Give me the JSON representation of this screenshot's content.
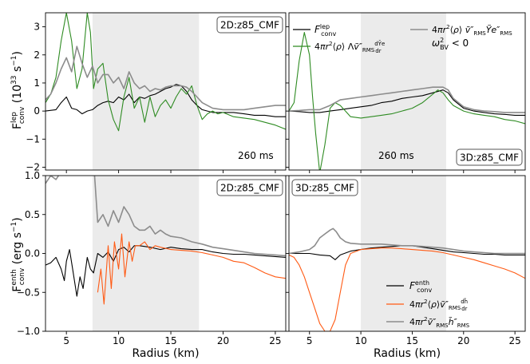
{
  "figure": {
    "top_ylabel": "F_conv^lep (10^33 s^-1)",
    "bottom_ylabel": "F_conv^enth (erg s^-1)",
    "xlabel": "Radius (km)"
  },
  "colors": {
    "black": "#000000",
    "gray": "#8c8c8c",
    "green": "#2e8b22",
    "orange": "#ff5a14",
    "shade": "#ebebeb"
  },
  "legend_top": [
    {
      "label": "F_conv^lep",
      "color": "#000000"
    },
    {
      "label": "4πr²⟨ρ⟩ Λṽ″_RMS dȲe/dr",
      "color": "#2e8b22"
    },
    {
      "label": "4πr²⟨ρ⟩ ṽ″_RMS Ỹe″_RMS",
      "color": "#8c8c8c"
    },
    {
      "label": "ω²_BV < 0",
      "color": "#ebebeb"
    }
  ],
  "legend_bottom": [
    {
      "label": "F_conv^enth",
      "color": "#000000"
    },
    {
      "label": "4πr²⟨ρ⟩ṽ″_RMS dh̃/dr",
      "color": "#ff5a14"
    },
    {
      "label": "4πr²ṽ″_RMS h̃″_RMS",
      "color": "#8c8c8c"
    }
  ],
  "chart_data": [
    {
      "type": "line",
      "panel": "2D:z85_CMF",
      "title": "2D:z85_CMF",
      "annotation": "260 ms",
      "xlabel": "",
      "ylabel": "F_conv^lep (10^33 s^-1)",
      "xlim": [
        3,
        26
      ],
      "ylim": [
        -2.1,
        3.5
      ],
      "xticks": [
        5,
        10,
        15,
        20,
        25
      ],
      "yticks": [
        -2,
        -1,
        0,
        1,
        2,
        3
      ],
      "shaded_region": [
        7.5,
        17.7
      ],
      "series": [
        {
          "name": "F_conv^lep",
          "color": "#000000",
          "x": [
            3,
            4,
            4.5,
            5,
            5.5,
            6,
            6.5,
            7,
            7.5,
            8,
            8.5,
            9,
            9.5,
            10,
            10.5,
            11,
            11.5,
            12,
            12.5,
            13,
            13.5,
            14,
            14.5,
            15,
            15.5,
            16,
            16.5,
            17,
            17.5,
            18,
            18.5,
            19,
            20,
            21,
            22,
            23,
            24,
            25,
            26
          ],
          "y": [
            0,
            0.05,
            0.3,
            0.5,
            0.1,
            0.05,
            -0.1,
            0,
            0.05,
            0.2,
            0.3,
            0.35,
            0.3,
            0.5,
            0.4,
            0.6,
            0.3,
            0.5,
            0.45,
            0.55,
            0.6,
            0.7,
            0.8,
            0.85,
            0.95,
            0.9,
            0.7,
            0.4,
            0.2,
            0.05,
            0,
            -0.05,
            -0.05,
            -0.05,
            -0.1,
            -0.15,
            -0.15,
            -0.2,
            -0.2
          ]
        },
        {
          "name": "4πr²⟨ρ⟩ Λṽ″_RMS dȲe/dr",
          "color": "#2e8b22",
          "x": [
            3,
            3.5,
            4,
            4.5,
            5,
            5.5,
            6,
            6.5,
            7,
            7.3,
            7.6,
            8,
            8.5,
            9,
            9.5,
            10,
            10.5,
            11,
            11.5,
            12,
            12.5,
            13,
            13.5,
            14,
            14.5,
            15,
            15.5,
            16,
            16.5,
            17,
            17.5,
            18,
            18.5,
            19,
            19.5,
            20,
            21,
            22,
            23,
            24,
            25,
            26
          ],
          "y": [
            0.3,
            0.6,
            1.2,
            2.5,
            3.5,
            2.5,
            0.8,
            1.5,
            3.5,
            2.8,
            0.8,
            1.5,
            1.7,
            0.4,
            -0.3,
            -0.7,
            0.5,
            1.2,
            0.1,
            0.5,
            -0.4,
            0.5,
            -0.2,
            0.2,
            0.4,
            0.1,
            0.5,
            0.8,
            0.6,
            0.9,
            0.2,
            -0.3,
            -0.1,
            0.0,
            -0.1,
            -0.05,
            -0.2,
            -0.25,
            -0.3,
            -0.4,
            -0.5,
            -0.65
          ]
        },
        {
          "name": "4πr²⟨ρ⟩ ṽ″_RMS Ỹe″_RMS",
          "color": "#8c8c8c",
          "x": [
            3,
            3.5,
            4,
            4.5,
            5,
            5.5,
            6,
            6.5,
            7,
            7.5,
            8,
            8.5,
            9,
            9.5,
            10,
            10.5,
            11,
            11.5,
            12,
            12.5,
            13,
            13.5,
            14,
            14.5,
            15,
            15.5,
            16,
            16.5,
            17,
            17.5,
            18,
            18.5,
            19,
            20,
            21,
            22,
            23,
            24,
            25,
            26
          ],
          "y": [
            0.4,
            0.6,
            1.0,
            1.5,
            1.9,
            1.4,
            2.3,
            1.7,
            1.2,
            1.6,
            1.0,
            1.3,
            1.3,
            1.0,
            1.2,
            0.8,
            1.4,
            1.0,
            0.8,
            0.9,
            0.7,
            0.8,
            0.75,
            0.85,
            0.9,
            0.9,
            0.9,
            0.85,
            0.7,
            0.5,
            0.3,
            0.2,
            0.1,
            0.05,
            0.05,
            0.05,
            0.1,
            0.15,
            0.2,
            0.2
          ]
        }
      ]
    },
    {
      "type": "line",
      "panel": "3D:z85_CMF (lepton)",
      "title": "3D:z85_CMF",
      "annotation": "260 ms",
      "xlabel": "",
      "ylabel": "",
      "xlim": [
        3,
        26
      ],
      "ylim": [
        -2.1,
        3.5
      ],
      "xticks": [
        5,
        10,
        15,
        20,
        25
      ],
      "yticks": [
        -2,
        -1,
        0,
        1,
        2,
        3
      ],
      "shaded_region": [
        10,
        18.3
      ],
      "series": [
        {
          "name": "F_conv^lep",
          "color": "#000000",
          "x": [
            3,
            4,
            5,
            6,
            7,
            8,
            9,
            10,
            11,
            12,
            13,
            14,
            15,
            16,
            17,
            18,
            18.5,
            19,
            20,
            21,
            22,
            23,
            24,
            25,
            26
          ],
          "y": [
            0,
            -0.02,
            -0.05,
            -0.05,
            0,
            0.05,
            0.1,
            0.15,
            0.2,
            0.3,
            0.35,
            0.45,
            0.5,
            0.55,
            0.65,
            0.75,
            0.65,
            0.4,
            0.1,
            0,
            -0.05,
            -0.1,
            -0.12,
            -0.15,
            -0.15
          ]
        },
        {
          "name": "4πr²⟨ρ⟩ Λṽ″_RMS dȲe/dr",
          "color": "#2e8b22",
          "x": [
            3,
            3.5,
            4,
            4.5,
            5,
            5.3,
            5.6,
            6,
            6.5,
            7,
            7.5,
            8,
            8.5,
            9,
            10,
            11,
            12,
            13,
            14,
            15,
            16,
            17,
            17.5,
            18,
            18.5,
            19,
            20,
            21,
            22,
            23,
            24,
            25,
            26
          ],
          "y": [
            0,
            0.3,
            1.8,
            2.8,
            2.0,
            0.5,
            -0.8,
            -2.2,
            -1.2,
            0.1,
            0.3,
            0.2,
            0,
            -0.2,
            -0.25,
            -0.2,
            -0.15,
            -0.1,
            0,
            0.1,
            0.3,
            0.6,
            0.75,
            0.65,
            0.4,
            0.2,
            0,
            -0.1,
            -0.15,
            -0.2,
            -0.3,
            -0.35,
            -0.45
          ]
        },
        {
          "name": "4πr²⟨ρ⟩ ṽ″_RMS Ỹe″_RMS",
          "color": "#8c8c8c",
          "x": [
            3,
            4,
            5,
            6,
            7,
            8,
            9,
            10,
            11,
            12,
            13,
            14,
            15,
            16,
            17,
            18,
            18.5,
            19,
            20,
            21,
            22,
            23,
            24,
            25,
            26
          ],
          "y": [
            0,
            0.02,
            0.05,
            0.05,
            0.2,
            0.4,
            0.45,
            0.5,
            0.55,
            0.6,
            0.65,
            0.7,
            0.75,
            0.8,
            0.85,
            0.85,
            0.75,
            0.45,
            0.15,
            0.05,
            0,
            -0.02,
            -0.05,
            -0.05,
            -0.05
          ]
        }
      ]
    },
    {
      "type": "line",
      "panel": "2D:z85_CMF (enthalpy)",
      "title": "2D:z85_CMF",
      "xlabel": "Radius (km)",
      "ylabel": "F_conv^enth (erg s^-1)",
      "xlim": [
        3,
        26
      ],
      "ylim": [
        -1.0,
        1.0
      ],
      "xticks": [
        5,
        10,
        15,
        20,
        25
      ],
      "yticks": [
        -1.0,
        -0.5,
        0.0,
        0.5,
        1.0
      ],
      "shaded_region": [
        7.5,
        17.7
      ],
      "series": [
        {
          "name": "F_conv^enth",
          "color": "#000000",
          "x": [
            3,
            3.5,
            4,
            4.5,
            4.8,
            5,
            5.3,
            5.6,
            6,
            6.3,
            6.6,
            7,
            7.3,
            7.6,
            8,
            8.5,
            9,
            9.5,
            10,
            10.5,
            11,
            11.5,
            12,
            13,
            14,
            15,
            16,
            17,
            18,
            19,
            20,
            21,
            22,
            23,
            24,
            25,
            26
          ],
          "y": [
            -0.15,
            -0.12,
            -0.05,
            -0.2,
            -0.35,
            -0.1,
            0.05,
            -0.2,
            -0.55,
            -0.3,
            -0.45,
            -0.05,
            -0.2,
            -0.25,
            0,
            -0.05,
            0.02,
            -0.1,
            0.05,
            0.08,
            0.02,
            0.1,
            0.1,
            0.08,
            0.05,
            0.08,
            0.06,
            0.05,
            0.05,
            0.02,
            0,
            -0.01,
            -0.01,
            -0.02,
            -0.03,
            -0.04,
            -0.05
          ]
        },
        {
          "name": "4πr²⟨ρ⟩ṽ″_RMS dh̃/dr",
          "color": "#ff5a14",
          "x": [
            8,
            8.3,
            8.6,
            9,
            9.3,
            9.6,
            10,
            10.3,
            10.6,
            11,
            11.3,
            11.6,
            12,
            12.5,
            13,
            13.5,
            14,
            15,
            16,
            17,
            18,
            19,
            20,
            21,
            22,
            23,
            24,
            25,
            26
          ],
          "y": [
            -0.5,
            -0.2,
            -0.65,
            0.1,
            -0.45,
            0.15,
            -0.2,
            0.25,
            -0.3,
            0.15,
            -0.1,
            0.1,
            0.1,
            0.15,
            0.05,
            0.1,
            0.08,
            0.05,
            0.04,
            0.03,
            0.01,
            -0.02,
            -0.05,
            -0.1,
            -0.12,
            -0.18,
            -0.25,
            -0.3,
            -0.32
          ]
        },
        {
          "name": "4πr²ṽ″_RMS h̃″_RMS",
          "color": "#8c8c8c",
          "x": [
            3,
            3.5,
            4,
            4.5,
            5,
            5.5,
            7.6,
            8,
            8.5,
            9,
            9.5,
            10,
            10.5,
            11,
            11.5,
            12,
            12.5,
            13,
            13.5,
            14,
            14.5,
            15,
            16,
            17,
            18,
            19,
            20,
            21,
            22,
            23,
            24,
            25,
            26
          ],
          "y": [
            0.9,
            1.0,
            0.95,
            1.05,
            1.1,
            1.2,
            1.2,
            0.4,
            0.5,
            0.35,
            0.55,
            0.4,
            0.6,
            0.5,
            0.35,
            0.3,
            0.3,
            0.35,
            0.25,
            0.3,
            0.25,
            0.22,
            0.2,
            0.15,
            0.12,
            0.08,
            0.06,
            0.04,
            0.02,
            0,
            -0.01,
            -0.02,
            -0.03
          ]
        }
      ]
    },
    {
      "type": "line",
      "panel": "3D:z85_CMF (enthalpy)",
      "title": "3D:z85_CMF",
      "xlabel": "Radius (km)",
      "ylabel": "",
      "xlim": [
        3,
        26
      ],
      "ylim": [
        -1.0,
        1.0
      ],
      "xticks": [
        5,
        10,
        15,
        20,
        25
      ],
      "yticks": [
        -1.0,
        -0.5,
        0.0,
        0.5,
        1.0
      ],
      "shaded_region": [
        10,
        18.3
      ],
      "series": [
        {
          "name": "F_conv^enth",
          "color": "#000000",
          "x": [
            3,
            4,
            5,
            6,
            7,
            7.5,
            8,
            9,
            10,
            11,
            12,
            13,
            14,
            15,
            16,
            17,
            18,
            19,
            20,
            21,
            22,
            23,
            24,
            25,
            26
          ],
          "y": [
            0,
            0,
            0,
            -0.02,
            -0.03,
            -0.08,
            -0.02,
            0.03,
            0.05,
            0.07,
            0.08,
            0.09,
            0.1,
            0.1,
            0.08,
            0.06,
            0.04,
            0.02,
            0.01,
            0,
            -0.01,
            -0.01,
            -0.02,
            -0.02,
            -0.02
          ]
        },
        {
          "name": "4πr²⟨ρ⟩ṽ″_RMS dh̃/dr",
          "color": "#ff5a14",
          "x": [
            3,
            3.5,
            4,
            4.5,
            5,
            5.5,
            6,
            6.5,
            7,
            7.5,
            8,
            8.5,
            9,
            10,
            11,
            12,
            13,
            14,
            15,
            16,
            17,
            18,
            19,
            20,
            21,
            22,
            23,
            24,
            25,
            26
          ],
          "y": [
            -0.02,
            -0.05,
            -0.15,
            -0.3,
            -0.5,
            -0.7,
            -0.9,
            -1.0,
            -1.0,
            -0.85,
            -0.5,
            -0.15,
            0,
            0.05,
            0.06,
            0.07,
            0.07,
            0.06,
            0.05,
            0.04,
            0.03,
            0.01,
            -0.02,
            -0.05,
            -0.08,
            -0.12,
            -0.16,
            -0.2,
            -0.25,
            -0.32
          ]
        },
        {
          "name": "4πr²ṽ″_RMS h̃″_RMS",
          "color": "#8c8c8c",
          "x": [
            3,
            4,
            5,
            5.5,
            6,
            6.5,
            7,
            7.3,
            7.6,
            8,
            8.5,
            9,
            10,
            11,
            12,
            13,
            14,
            15,
            16,
            17,
            18,
            19,
            20,
            21,
            22,
            23,
            24,
            25,
            26
          ],
          "y": [
            0,
            0.02,
            0.05,
            0.1,
            0.2,
            0.25,
            0.3,
            0.32,
            0.28,
            0.2,
            0.15,
            0.13,
            0.12,
            0.12,
            0.12,
            0.11,
            0.1,
            0.1,
            0.09,
            0.08,
            0.07,
            0.05,
            0.03,
            0.02,
            0.01,
            0,
            0,
            0,
            0
          ]
        }
      ]
    }
  ]
}
